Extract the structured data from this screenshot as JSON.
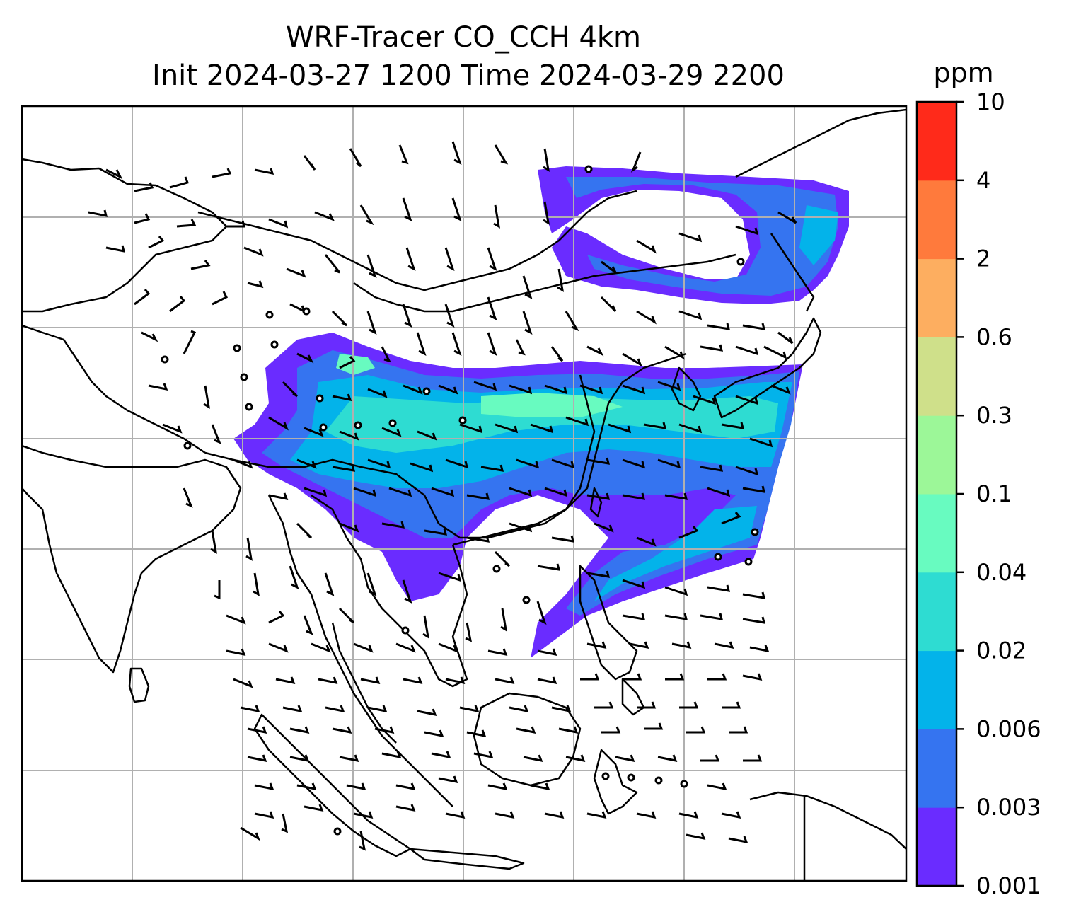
{
  "figure": {
    "title_line1": "WRF-Tracer CO_CCH 4km",
    "title_line2": "Init 2024-03-27 1200 Time 2024-03-29 2200"
  },
  "colorbar": {
    "unit": "ppm",
    "tick_labels": [
      "0.001",
      "0.003",
      "0.006",
      "0.02",
      "0.04",
      "0.1",
      "0.3",
      "0.6",
      "2",
      "4",
      "10"
    ],
    "colors": [
      "#6a2cff",
      "#3574f0",
      "#03b3ea",
      "#2edcd2",
      "#68fbc0",
      "#9cf798",
      "#cfe08a",
      "#fdae60",
      "#ff7a3c",
      "#ff2a1a"
    ]
  },
  "map": {
    "gridlines": true,
    "layers": [
      "coastlines",
      "borders",
      "tracer-concentration",
      "wind-barbs"
    ]
  }
}
